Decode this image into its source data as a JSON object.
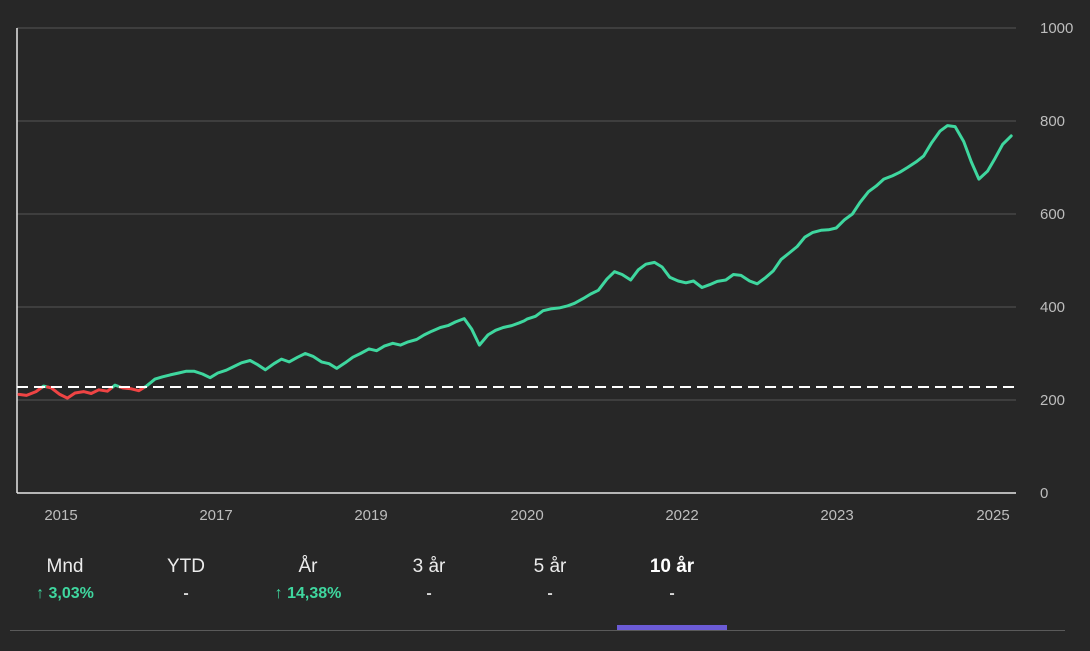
{
  "chart_data": {
    "type": "line",
    "yticks": [
      0,
      200,
      400,
      600,
      800,
      1000
    ],
    "xticks": [
      "2015",
      "2017",
      "2019",
      "2020",
      "2022",
      "2023",
      "2025"
    ],
    "ylim": [
      0,
      1000
    ],
    "xlim": [
      2014.8,
      2025.3
    ],
    "grid": true,
    "baseline": 228,
    "colors": {
      "above": "#3fd79f",
      "below": "#ef4444",
      "baseline": "#ffffff",
      "grid": "#555555"
    },
    "series": [
      {
        "x": [
          2014.82,
          2014.9,
          2015.0,
          2015.08,
          2015.16,
          2015.25,
          2015.33,
          2015.41,
          2015.5,
          2015.58,
          2015.66,
          2015.75,
          2015.83,
          2015.91,
          2016.0,
          2016.08,
          2016.16,
          2016.25,
          2016.33,
          2016.41,
          2016.5,
          2016.58,
          2016.66,
          2016.75,
          2016.83,
          2016.91,
          2017.0,
          2017.08,
          2017.16,
          2017.25,
          2017.33,
          2017.41,
          2017.5,
          2017.58,
          2017.66,
          2017.75,
          2017.83,
          2017.91,
          2018.0,
          2018.08,
          2018.16,
          2018.25,
          2018.33,
          2018.41,
          2018.5,
          2018.58,
          2018.66,
          2018.75,
          2018.83,
          2018.91,
          2019.0,
          2019.08,
          2019.16,
          2019.25,
          2019.33,
          2019.41,
          2019.5,
          2019.58,
          2019.66,
          2019.75,
          2019.83,
          2019.91,
          2020.0,
          2020.08,
          2020.13,
          2020.16,
          2020.25,
          2020.33,
          2020.41,
          2020.5,
          2020.58,
          2020.66,
          2020.75,
          2020.83,
          2020.91,
          2021.0,
          2021.08,
          2021.16,
          2021.25,
          2021.33,
          2021.41,
          2021.5,
          2021.58,
          2021.66,
          2021.75,
          2021.83,
          2021.91,
          2022.0,
          2022.08,
          2022.16,
          2022.25,
          2022.33,
          2022.41,
          2022.5,
          2022.58,
          2022.66,
          2022.75,
          2022.83,
          2022.91,
          2023.0,
          2023.08,
          2023.16,
          2023.25,
          2023.33,
          2023.41,
          2023.5,
          2023.58,
          2023.66,
          2023.75,
          2023.83,
          2023.91,
          2024.0,
          2024.08,
          2024.16,
          2024.25,
          2024.33,
          2024.41,
          2024.5,
          2024.58,
          2024.66,
          2024.75,
          2024.83,
          2024.91,
          2025.0,
          2025.08,
          2025.16,
          2025.25
        ],
        "y": [
          212,
          210,
          218,
          230,
          226,
          212,
          204,
          215,
          218,
          214,
          222,
          219,
          232,
          226,
          224,
          220,
          230,
          245,
          250,
          254,
          258,
          262,
          262,
          256,
          248,
          258,
          264,
          272,
          280,
          285,
          276,
          265,
          278,
          288,
          282,
          292,
          300,
          294,
          282,
          278,
          268,
          280,
          292,
          300,
          310,
          306,
          316,
          322,
          318,
          325,
          330,
          340,
          348,
          356,
          360,
          368,
          375,
          352,
          318,
          340,
          350,
          356,
          360,
          366,
          370,
          374,
          380,
          392,
          396,
          398,
          402,
          408,
          418,
          428,
          436,
          460,
          476,
          470,
          458,
          480,
          492,
          496,
          486,
          464,
          456,
          452,
          456,
          442,
          448,
          455,
          458,
          470,
          468,
          456,
          450,
          462,
          478,
          502,
          515,
          530,
          550,
          560,
          565,
          566,
          570,
          588,
          600,
          625,
          648,
          660,
          675,
          682,
          690,
          700,
          712,
          725,
          752,
          778,
          790,
          788,
          756,
          712,
          675,
          692,
          720,
          750,
          768
        ]
      }
    ]
  },
  "tabs": [
    {
      "label": "Mnd",
      "value": "3,03%",
      "trend": "up"
    },
    {
      "label": "YTD",
      "value": "-",
      "trend": "none"
    },
    {
      "label": "År",
      "value": "14,38%",
      "trend": "up"
    },
    {
      "label": "3 år",
      "value": "-",
      "trend": "none"
    },
    {
      "label": "5 år",
      "value": "-",
      "trend": "none"
    },
    {
      "label": "10 år",
      "value": "-",
      "trend": "none"
    }
  ],
  "active_tab": 5,
  "icons": {
    "trend_up": "arrow-up-icon"
  }
}
